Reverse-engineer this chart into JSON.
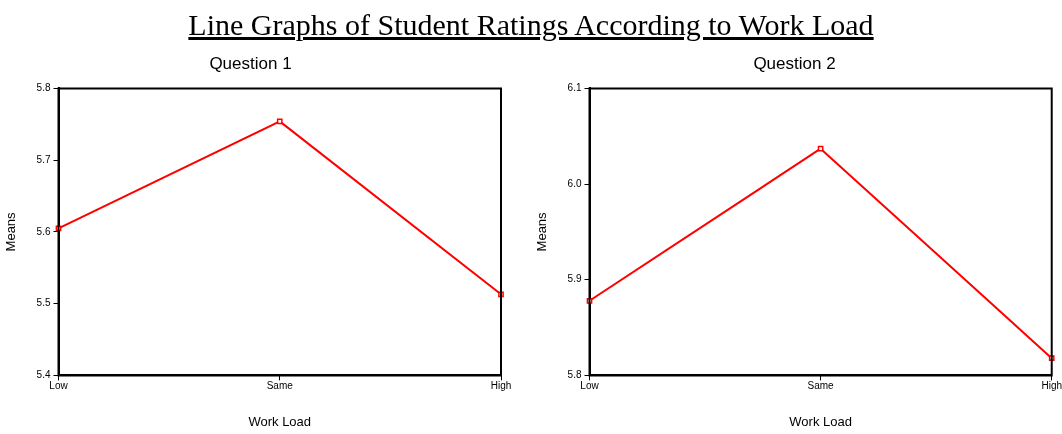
{
  "chart_data": [
    {
      "type": "line",
      "title": "Question 1",
      "xlabel": "Work Load",
      "ylabel": "Means",
      "annotations": [
        "Line Graphs of Student Ratings According to Work Load"
      ],
      "categories": [
        "Low",
        "Same",
        "High"
      ],
      "series": [
        {
          "color": "#ff0000",
          "values": [
            5.605,
            5.754,
            5.513
          ]
        }
      ],
      "ylim": [
        5.4,
        5.8
      ],
      "yticks": [
        5.4,
        5.5,
        5.6,
        5.7,
        5.8
      ],
      "marker": "square",
      "line_style": "solid"
    },
    {
      "type": "line",
      "title": "Question 2",
      "xlabel": "Work Load",
      "ylabel": "Means",
      "categories": [
        "Low",
        "Same",
        "High"
      ],
      "series": [
        {
          "color": "#ff0000",
          "values": [
            5.878,
            6.037,
            5.818
          ]
        }
      ],
      "ylim": [
        5.8,
        6.1
      ],
      "yticks": [
        5.8,
        5.9,
        {
          "value": 6,
          "label": "6.0"
        },
        6.1
      ],
      "marker": "square",
      "line_style": "solid"
    }
  ]
}
